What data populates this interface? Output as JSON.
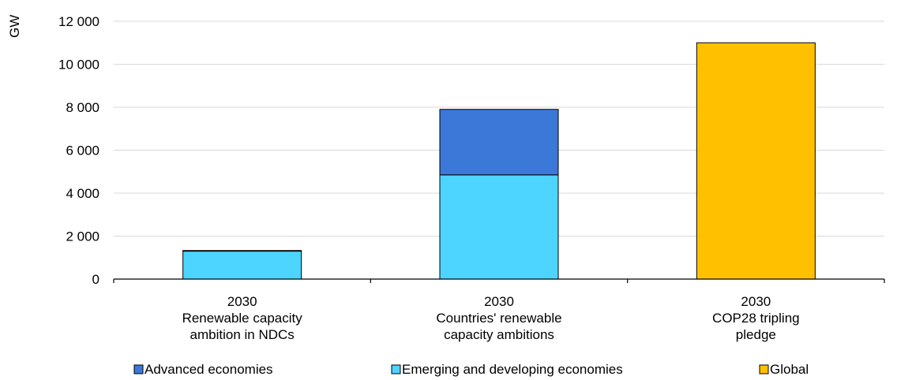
{
  "chart_data": {
    "type": "bar",
    "stacked": true,
    "ylabel": "GW",
    "ylim": [
      0,
      12000
    ],
    "yticks": [
      0,
      2000,
      4000,
      6000,
      8000,
      10000,
      12000
    ],
    "ytick_labels": [
      "0",
      "2 000",
      "4 000",
      "6 000",
      "8 000",
      "10 000",
      "12 000"
    ],
    "grid": true,
    "legend_position": "bottom",
    "categories": [
      {
        "year": "2030",
        "line1": "Renewable capacity",
        "line2": "ambition in NDCs"
      },
      {
        "year": "2030",
        "line1": "Countries' renewable",
        "line2": "capacity ambitions"
      },
      {
        "year": "2030",
        "line1": "COP28 tripling",
        "line2": "pledge"
      }
    ],
    "series": [
      {
        "name": "Emerging and developing economies",
        "color": "#4dd4ff",
        "values": [
          1300,
          4850,
          0
        ]
      },
      {
        "name": "Advanced economies",
        "color": "#3c78d8",
        "values": [
          30,
          3050,
          0
        ]
      },
      {
        "name": "Global",
        "color": "#ffc000",
        "values": [
          0,
          0,
          11000
        ]
      }
    ],
    "legend": [
      {
        "name": "Advanced economies",
        "color": "#3c78d8"
      },
      {
        "name": "Emerging and developing economies",
        "color": "#4dd4ff"
      },
      {
        "name": "Global",
        "color": "#ffc000"
      }
    ]
  }
}
